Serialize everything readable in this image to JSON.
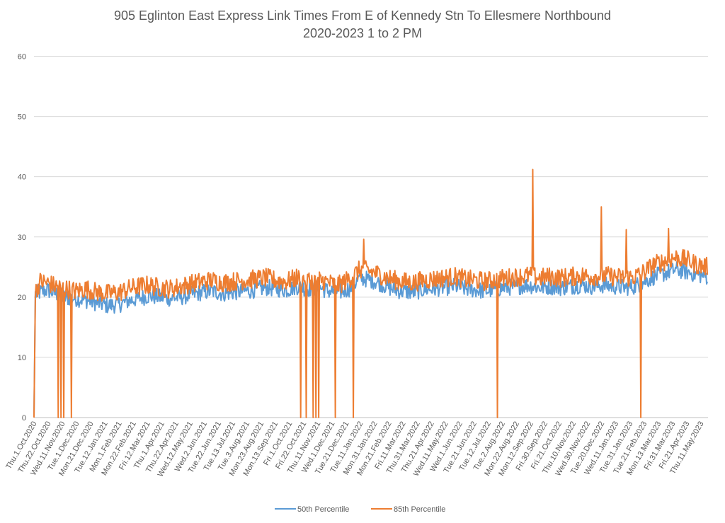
{
  "chart_data": {
    "type": "line",
    "title_line1": "905 Eglinton East Express Link Times From E of Kennedy Stn To Ellesmere Northbound",
    "title_line2": "2020-2023 1 to 2 PM",
    "xlabel": "",
    "ylabel": "",
    "ylim": [
      0,
      60
    ],
    "yticks": [
      0,
      10,
      20,
      30,
      40,
      50,
      60
    ],
    "grid": "horizontal",
    "legend_position": "bottom",
    "x_start": "2020-10-01",
    "x_end": "2023-06-01",
    "x_tick_labels": [
      "Thu.1.Oct.2020",
      "Thu.22.Oct.2020",
      "Wed.11.Nov.2020",
      "Tue.1.Dec.2020",
      "Mon.21.Dec.2020",
      "Tue.12.Jan.2021",
      "Mon.1.Feb.2021",
      "Mon.22.Feb.2021",
      "Fri.12.Mar.2021",
      "Thu.1.Apr.2021",
      "Thu.22.Apr.2021",
      "Wed.12.May.2021",
      "Wed.2.Jun.2021",
      "Tue.22.Jun.2021",
      "Tue.13.Jul.2021",
      "Tue.3.Aug.2021",
      "Mon.23.Aug.2021",
      "Mon.13.Sep.2021",
      "Fri.1.Oct.2021",
      "Fri.22.Oct.2021",
      "Thu.11.Nov.2021",
      "Wed.1.Dec.2021",
      "Tue.21.Dec.2021",
      "Tue.11.Jan.2022",
      "Mon.31.Jan.2022",
      "Mon.21.Feb.2022",
      "Fri.11.Mar.2022",
      "Thu.31.Mar.2022",
      "Thu.21.Apr.2022",
      "Wed.11.May.2022",
      "Wed.1.Jun.2022",
      "Tue.21.Jun.2022",
      "Tue.12.Jul.2022",
      "Tue.2.Aug.2022",
      "Mon.22.Aug.2022",
      "Mon.12.Sep.2022",
      "Fri.30.Sep.2022",
      "Fri.21.Oct.2022",
      "Thu.10.Nov.2022",
      "Wed.30.Nov.2022",
      "Tue.20.Dec.2022",
      "Wed.11.Jan.2023",
      "Tue.31.Jan.2023",
      "Tue.21.Feb.2023",
      "Mon.13.Mar.2023",
      "Fri.31.Mar.2023",
      "Fri.21.Apr.2023",
      "Thu.11.May.2023"
    ],
    "series": [
      {
        "name": "50th Percentile",
        "color": "#5B9BD5",
        "points": [
          [
            "2020-10-01",
            0
          ],
          [
            "2020-10-03",
            20.5
          ],
          [
            "2020-10-10",
            20.8
          ],
          [
            "2020-10-20",
            21.2
          ],
          [
            "2020-11-01",
            20.6
          ],
          [
            "2020-11-15",
            19.9
          ],
          [
            "2020-12-01",
            19.8
          ],
          [
            "2020-12-15",
            19.5
          ],
          [
            "2021-01-01",
            19.0
          ],
          [
            "2021-01-15",
            18.6
          ],
          [
            "2021-02-01",
            18.8
          ],
          [
            "2021-02-15",
            19.4
          ],
          [
            "2021-03-01",
            19.8
          ],
          [
            "2021-03-15",
            20.2
          ],
          [
            "2021-04-01",
            20.0
          ],
          [
            "2021-04-15",
            19.8
          ],
          [
            "2021-05-01",
            20.0
          ],
          [
            "2021-05-15",
            20.4
          ],
          [
            "2021-06-01",
            20.8
          ],
          [
            "2021-06-15",
            21.0
          ],
          [
            "2021-07-01",
            20.6
          ],
          [
            "2021-07-15",
            20.8
          ],
          [
            "2021-08-01",
            21.0
          ],
          [
            "2021-08-15",
            21.2
          ],
          [
            "2021-09-01",
            21.6
          ],
          [
            "2021-09-15",
            21.4
          ],
          [
            "2021-10-01",
            21.2
          ],
          [
            "2021-10-15",
            21.8
          ],
          [
            "2021-11-01",
            21.4
          ],
          [
            "2021-11-15",
            21.6
          ],
          [
            "2021-12-01",
            21.0
          ],
          [
            "2021-12-15",
            20.8
          ],
          [
            "2022-01-01",
            21.5
          ],
          [
            "2022-01-15",
            23.2
          ],
          [
            "2022-02-01",
            22.8
          ],
          [
            "2022-02-15",
            22.2
          ],
          [
            "2022-03-01",
            21.4
          ],
          [
            "2022-03-15",
            21.0
          ],
          [
            "2022-04-01",
            20.8
          ],
          [
            "2022-04-15",
            21.2
          ],
          [
            "2022-05-01",
            21.4
          ],
          [
            "2022-05-15",
            21.6
          ],
          [
            "2022-06-01",
            21.8
          ],
          [
            "2022-06-15",
            21.4
          ],
          [
            "2022-07-01",
            21.2
          ],
          [
            "2022-07-15",
            21.0
          ],
          [
            "2022-08-01",
            21.4
          ],
          [
            "2022-08-15",
            21.6
          ],
          [
            "2022-09-01",
            21.8
          ],
          [
            "2022-09-15",
            22.0
          ],
          [
            "2022-10-01",
            21.6
          ],
          [
            "2022-10-15",
            21.8
          ],
          [
            "2022-11-01",
            21.6
          ],
          [
            "2022-11-15",
            21.8
          ],
          [
            "2022-12-01",
            22.0
          ],
          [
            "2022-12-15",
            21.8
          ],
          [
            "2023-01-01",
            22.0
          ],
          [
            "2023-01-15",
            21.8
          ],
          [
            "2023-02-01",
            21.6
          ],
          [
            "2023-02-15",
            21.8
          ],
          [
            "2023-03-01",
            22.6
          ],
          [
            "2023-03-15",
            23.4
          ],
          [
            "2023-04-01",
            24.0
          ],
          [
            "2023-04-15",
            24.6
          ],
          [
            "2023-05-01",
            24.2
          ],
          [
            "2023-05-15",
            23.8
          ],
          [
            "2023-05-31",
            23.4
          ]
        ]
      },
      {
        "name": "85th Percentile",
        "color": "#ED7D31",
        "points": [
          [
            "2020-10-01",
            0
          ],
          [
            "2020-10-03",
            20.8
          ],
          [
            "2020-10-10",
            22.6
          ],
          [
            "2020-10-20",
            22.4
          ],
          [
            "2020-11-01",
            21.8
          ],
          [
            "2020-11-15",
            21.4
          ],
          [
            "2020-12-01",
            21.0
          ],
          [
            "2020-12-15",
            21.4
          ],
          [
            "2021-01-01",
            20.8
          ],
          [
            "2021-01-15",
            20.6
          ],
          [
            "2021-02-01",
            20.8
          ],
          [
            "2021-02-15",
            21.4
          ],
          [
            "2021-03-01",
            21.8
          ],
          [
            "2021-03-15",
            22.0
          ],
          [
            "2021-04-01",
            21.6
          ],
          [
            "2021-04-15",
            21.4
          ],
          [
            "2021-05-01",
            21.8
          ],
          [
            "2021-05-15",
            22.2
          ],
          [
            "2021-06-01",
            22.6
          ],
          [
            "2021-06-15",
            22.8
          ],
          [
            "2021-07-01",
            22.4
          ],
          [
            "2021-07-15",
            22.6
          ],
          [
            "2021-08-01",
            22.8
          ],
          [
            "2021-08-15",
            23.0
          ],
          [
            "2021-09-01",
            23.2
          ],
          [
            "2021-09-15",
            22.8
          ],
          [
            "2021-10-01",
            22.6
          ],
          [
            "2021-10-15",
            23.2
          ],
          [
            "2021-11-01",
            22.8
          ],
          [
            "2021-11-15",
            23.0
          ],
          [
            "2021-12-01",
            22.4
          ],
          [
            "2021-12-15",
            22.0
          ],
          [
            "2022-01-01",
            23.2
          ],
          [
            "2022-01-15",
            24.6
          ],
          [
            "2022-02-01",
            24.2
          ],
          [
            "2022-02-15",
            23.6
          ],
          [
            "2022-03-01",
            23.0
          ],
          [
            "2022-03-15",
            22.6
          ],
          [
            "2022-04-01",
            22.4
          ],
          [
            "2022-04-15",
            22.8
          ],
          [
            "2022-05-01",
            23.0
          ],
          [
            "2022-05-15",
            23.2
          ],
          [
            "2022-06-01",
            23.4
          ],
          [
            "2022-06-15",
            23.0
          ],
          [
            "2022-07-01",
            22.8
          ],
          [
            "2022-07-15",
            22.6
          ],
          [
            "2022-08-01",
            23.0
          ],
          [
            "2022-08-15",
            23.2
          ],
          [
            "2022-09-01",
            23.4
          ],
          [
            "2022-09-15",
            23.6
          ],
          [
            "2022-10-01",
            23.2
          ],
          [
            "2022-10-15",
            23.4
          ],
          [
            "2022-11-01",
            23.2
          ],
          [
            "2022-11-15",
            23.4
          ],
          [
            "2022-12-01",
            23.6
          ],
          [
            "2022-12-15",
            23.4
          ],
          [
            "2023-01-01",
            23.6
          ],
          [
            "2023-01-15",
            23.4
          ],
          [
            "2023-02-01",
            23.2
          ],
          [
            "2023-02-15",
            23.4
          ],
          [
            "2023-03-01",
            24.2
          ],
          [
            "2023-03-15",
            25.4
          ],
          [
            "2023-04-01",
            26.0
          ],
          [
            "2023-04-15",
            26.6
          ],
          [
            "2023-05-01",
            26.2
          ],
          [
            "2023-05-15",
            25.4
          ],
          [
            "2023-05-31",
            25.0
          ]
        ],
        "spikes": [
          [
            "2022-01-20",
            29.6
          ],
          [
            "2022-09-21",
            41.2
          ],
          [
            "2022-12-29",
            35.0
          ],
          [
            "2023-02-03",
            31.2
          ],
          [
            "2023-04-05",
            31.4
          ]
        ],
        "drops": [
          "2020-11-05",
          "2020-11-09",
          "2020-11-13",
          "2020-11-24",
          "2021-10-21",
          "2021-10-29",
          "2021-11-08",
          "2021-11-12",
          "2021-11-16",
          "2021-12-10",
          "2022-01-05",
          "2022-08-01",
          "2023-02-24"
        ]
      }
    ]
  }
}
